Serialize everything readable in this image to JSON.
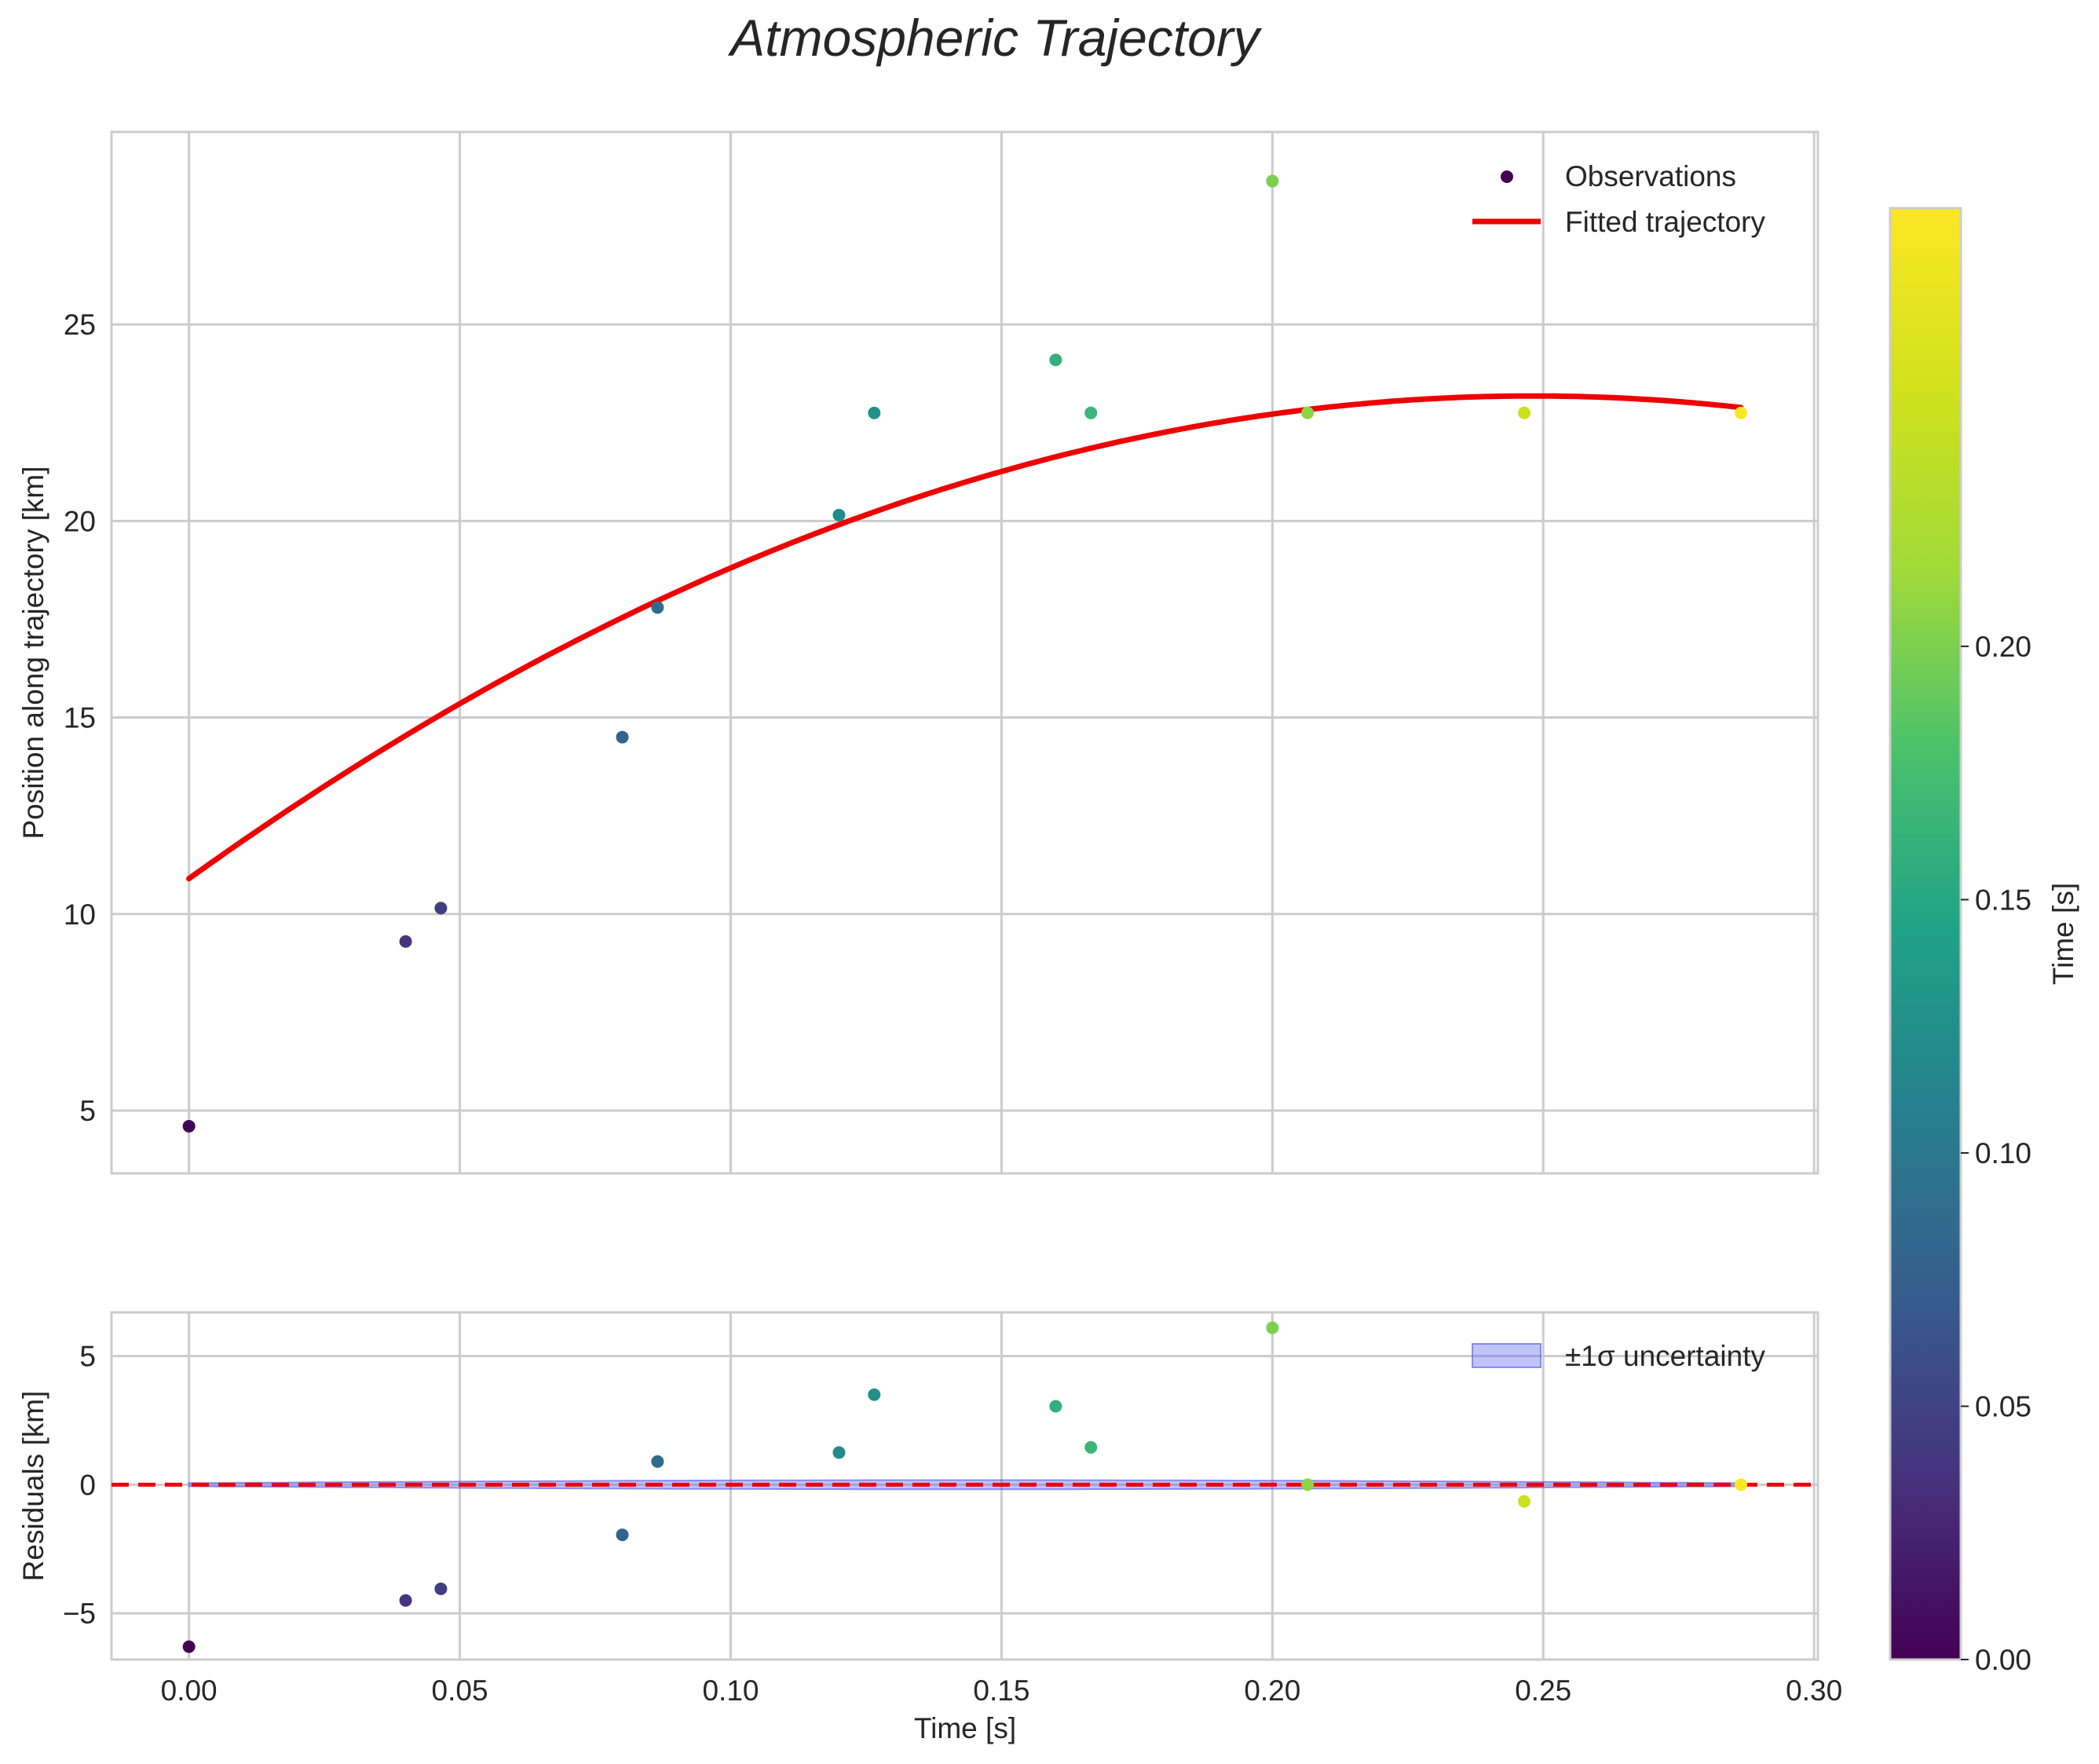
{
  "chart_data": [
    {
      "type": "scatter",
      "title": "Atmospheric Trajectory",
      "xlabel": "",
      "ylabel": "Position along trajectory [km]",
      "xlim": [
        -0.0143,
        0.3007
      ],
      "ylim": [
        3.4,
        29.9
      ],
      "xticks": [
        0.0,
        0.05,
        0.1,
        0.15,
        0.2,
        0.25,
        0.3
      ],
      "yticks": [
        5,
        10,
        15,
        20,
        25
      ],
      "ytick_labels": [
        "5",
        "10",
        "15",
        "20",
        "25"
      ],
      "grid": true,
      "legend": {
        "position": "top-right",
        "entries": [
          "Observations",
          "Fitted trajectory"
        ]
      },
      "observations": {
        "name": "Observations",
        "x": [
          0.0,
          0.04,
          0.0465,
          0.08,
          0.0865,
          0.12,
          0.1265,
          0.16,
          0.1665,
          0.2,
          0.2065,
          0.2465,
          0.2865
        ],
        "y": [
          4.6,
          9.3,
          10.15,
          14.5,
          17.8,
          20.15,
          22.75,
          24.1,
          22.75,
          28.65,
          22.75,
          22.75,
          22.75
        ]
      },
      "fit": {
        "name": "Fitted trajectory",
        "color": "#ee0000",
        "coefficients": [
          10.9,
          99.0,
          -199.5
        ]
      }
    },
    {
      "type": "scatter",
      "xlabel": "Time [s]",
      "ylabel": "Residuals [km]",
      "xlim": [
        -0.0143,
        0.3007
      ],
      "ylim": [
        -6.8,
        6.7
      ],
      "xticks": [
        0.0,
        0.05,
        0.1,
        0.15,
        0.2,
        0.25,
        0.3
      ],
      "xtick_labels": [
        "0.00",
        "0.05",
        "0.10",
        "0.15",
        "0.20",
        "0.25",
        "0.30"
      ],
      "yticks": [
        -5,
        0,
        5
      ],
      "ytick_labels": [
        "−5",
        "0",
        "5"
      ],
      "grid": true,
      "legend": {
        "position": "top-right",
        "entries": [
          "±1σ uncertainty"
        ]
      },
      "residuals": {
        "x": [
          0.0,
          0.04,
          0.0465,
          0.08,
          0.0865,
          0.12,
          0.1265,
          0.16,
          0.1665,
          0.2,
          0.2065,
          0.2465,
          0.2865
        ],
        "y": [
          -6.3,
          -4.5,
          -4.05,
          -1.95,
          0.9,
          1.25,
          3.5,
          3.05,
          1.45,
          6.1,
          0.0,
          -0.65,
          0.0
        ]
      },
      "uncertainty_band": {
        "name": "±1σ uncertainty",
        "sigma_max": 0.18,
        "color": "#4a55f0"
      },
      "zero_line": {
        "y": 0,
        "color": "#ee0000",
        "style": "dashed"
      }
    }
  ],
  "colorbar": {
    "label": "Time [s]",
    "colormap": "viridis",
    "range": [
      0.0,
      0.2865
    ],
    "ticks": [
      0.0,
      0.05,
      0.1,
      0.15,
      0.2
    ],
    "tick_labels": [
      "0.00",
      "0.05",
      "0.10",
      "0.15",
      "0.20"
    ]
  }
}
